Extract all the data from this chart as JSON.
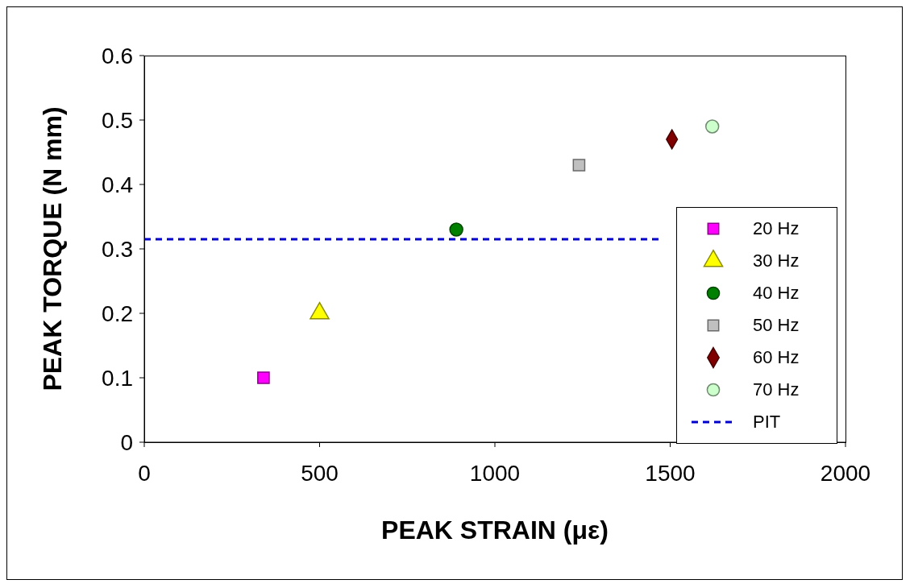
{
  "chart_data": {
    "type": "scatter",
    "xlabel": "PEAK STRAIN (με)",
    "ylabel": "PEAK TORQUE (N mm)",
    "xlim": [
      0,
      2000
    ],
    "xticks": [
      0,
      500,
      1000,
      1500,
      2000
    ],
    "ylim": [
      0,
      0.6
    ],
    "yticks": [
      0,
      0.1,
      0.2,
      0.3,
      0.4,
      0.5,
      0.6
    ],
    "grid": false,
    "legend": "right",
    "series": [
      {
        "name": "20 Hz",
        "color": "#ff00ff",
        "marker": "square",
        "x": [
          340
        ],
        "values": [
          0.1
        ]
      },
      {
        "name": "30 Hz",
        "color": "#ffff00",
        "marker": "triangle",
        "x": [
          500
        ],
        "values": [
          0.2
        ]
      },
      {
        "name": "40 Hz",
        "color": "#008000",
        "marker": "circle",
        "x": [
          890
        ],
        "values": [
          0.33
        ]
      },
      {
        "name": "50 Hz",
        "color": "#c0c0c0",
        "marker": "square",
        "x": [
          1240
        ],
        "values": [
          0.43
        ]
      },
      {
        "name": "60 Hz",
        "color": "#800000",
        "marker": "diamond",
        "x": [
          1505
        ],
        "values": [
          0.47
        ]
      },
      {
        "name": "70 Hz",
        "color": "#ccffcc",
        "marker": "circle",
        "x": [
          1620
        ],
        "values": [
          0.49
        ]
      },
      {
        "name": "PIT",
        "type": "line",
        "color": "#0000cc",
        "marker": "none",
        "line_style": "dashed",
        "x": [
          0,
          1470
        ],
        "values": [
          0.315,
          0.315
        ]
      }
    ]
  }
}
